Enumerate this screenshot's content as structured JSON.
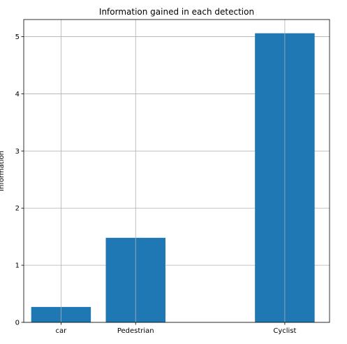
{
  "chart_data": {
    "type": "bar",
    "title": "Information gained in each detection",
    "xlabel": "",
    "ylabel": "Information",
    "categories": [
      "car",
      "Pedestrian",
      "Cyclist"
    ],
    "x": [
      0,
      1,
      3
    ],
    "xlim": [
      -0.5,
      3.6
    ],
    "values": [
      0.27,
      1.48,
      5.06
    ],
    "ylim": [
      0,
      5.3
    ],
    "yticks": [
      0,
      1,
      2,
      3,
      4,
      5
    ],
    "grid": true,
    "colors": {
      "bar": "#1f77b4",
      "grid": "#b0b0b0",
      "axis": "#000000"
    }
  }
}
